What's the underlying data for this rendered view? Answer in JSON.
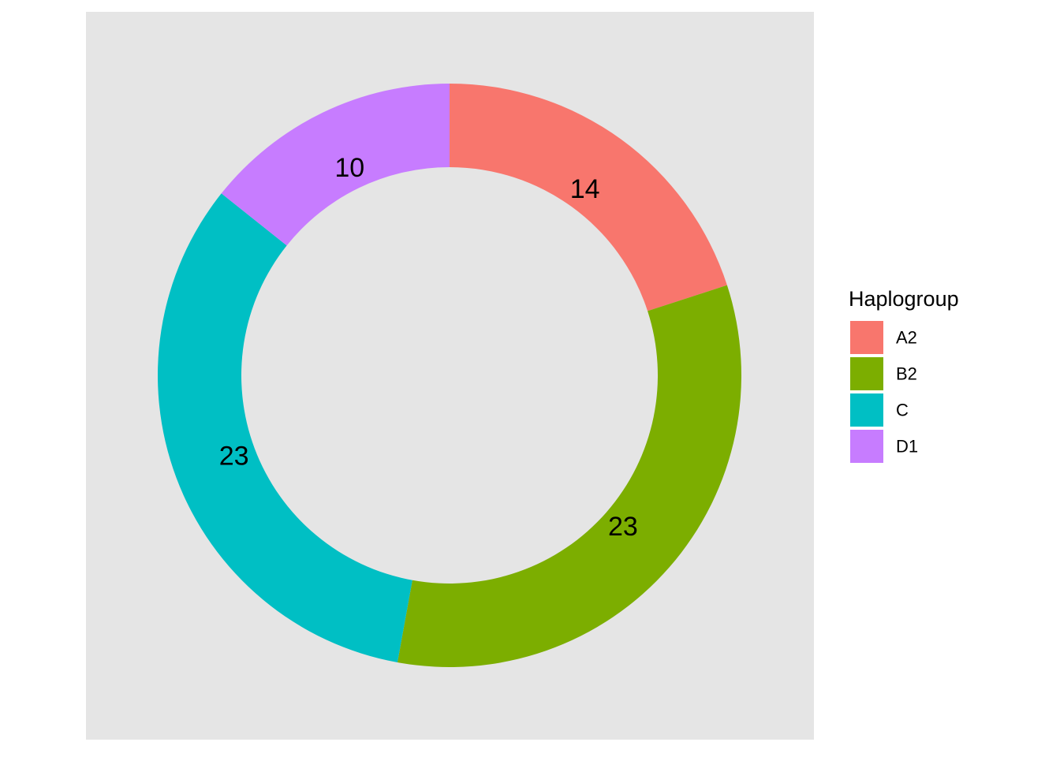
{
  "chart_data": {
    "type": "pie",
    "style": "donut",
    "categories": [
      "A2",
      "B2",
      "C",
      "D1"
    ],
    "values": [
      14,
      23,
      23,
      10
    ],
    "colors": [
      "#F8766D",
      "#7CAE00",
      "#00BFC4",
      "#C77CFF"
    ],
    "slice_labels": [
      "14",
      "23",
      "23",
      "10"
    ],
    "legend": {
      "title": "Haplogroup",
      "position": "right",
      "entries": [
        "A2",
        "B2",
        "C",
        "D1"
      ]
    },
    "panel_background": "#E5E5E5",
    "grid": false
  }
}
